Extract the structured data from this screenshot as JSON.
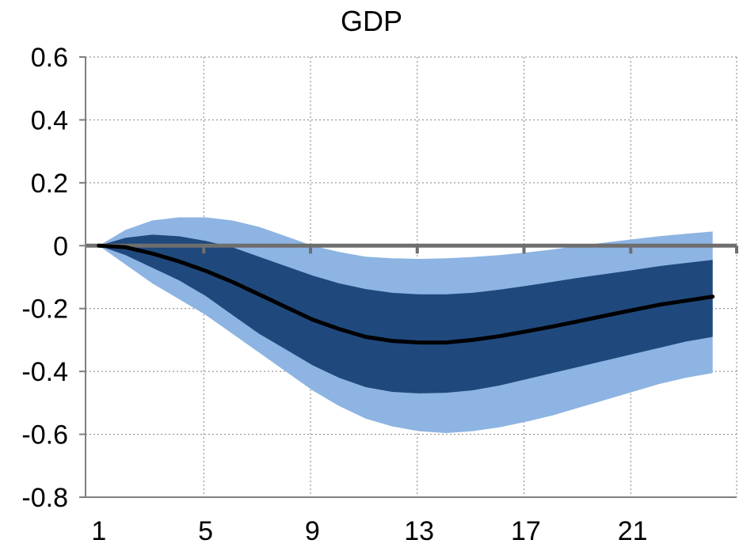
{
  "chart_data": {
    "type": "area",
    "title": "GDP",
    "xlabel": "",
    "ylabel": "",
    "x_ticks": [
      1,
      5,
      9,
      13,
      17,
      21
    ],
    "y_ticks": [
      0.6,
      0.4,
      0.2,
      0,
      -0.2,
      -0.4,
      -0.6,
      -0.8
    ],
    "x_tick_labels": [
      "1",
      "5",
      "9",
      "13",
      "17",
      "21"
    ],
    "y_tick_labels": [
      "0.6",
      "0.4",
      "0.2",
      "0",
      "-0.2",
      "-0.4",
      "-0.6",
      "-0.8"
    ],
    "xlim": [
      0.5,
      24.9
    ],
    "ylim": [
      -0.8,
      0.6
    ],
    "grid": true,
    "grid_style": "dotted",
    "x": [
      1,
      2,
      3,
      4,
      5,
      6,
      7,
      8,
      9,
      10,
      11,
      12,
      13,
      14,
      15,
      16,
      17,
      18,
      19,
      20,
      21,
      22,
      23,
      24
    ],
    "median": [
      0.0,
      -0.005,
      -0.025,
      -0.05,
      -0.08,
      -0.115,
      -0.155,
      -0.195,
      -0.235,
      -0.265,
      -0.29,
      -0.303,
      -0.308,
      -0.308,
      -0.3,
      -0.288,
      -0.273,
      -0.257,
      -0.24,
      -0.222,
      -0.205,
      -0.188,
      -0.175,
      -0.162
    ],
    "inner_lower": [
      0.0,
      -0.03,
      -0.07,
      -0.11,
      -0.16,
      -0.22,
      -0.28,
      -0.33,
      -0.38,
      -0.42,
      -0.45,
      -0.465,
      -0.47,
      -0.468,
      -0.46,
      -0.445,
      -0.425,
      -0.405,
      -0.385,
      -0.365,
      -0.345,
      -0.325,
      -0.305,
      -0.29
    ],
    "inner_upper": [
      0.0,
      0.025,
      0.035,
      0.03,
      0.015,
      -0.005,
      -0.035,
      -0.065,
      -0.095,
      -0.12,
      -0.138,
      -0.15,
      -0.155,
      -0.155,
      -0.15,
      -0.14,
      -0.128,
      -0.115,
      -0.102,
      -0.09,
      -0.078,
      -0.065,
      -0.055,
      -0.045
    ],
    "outer_lower": [
      0.0,
      -0.06,
      -0.12,
      -0.17,
      -0.22,
      -0.28,
      -0.34,
      -0.4,
      -0.46,
      -0.51,
      -0.55,
      -0.575,
      -0.59,
      -0.596,
      -0.59,
      -0.578,
      -0.56,
      -0.54,
      -0.515,
      -0.49,
      -0.465,
      -0.44,
      -0.42,
      -0.405
    ],
    "outer_upper": [
      0.0,
      0.05,
      0.08,
      0.09,
      0.09,
      0.08,
      0.06,
      0.03,
      0.0,
      -0.02,
      -0.035,
      -0.04,
      -0.042,
      -0.04,
      -0.036,
      -0.03,
      -0.022,
      -0.012,
      0.0,
      0.01,
      0.02,
      0.03,
      0.038,
      0.045
    ],
    "colors": {
      "outer_band": "#8db4e2",
      "inner_band": "#1f497d",
      "median_line": "#000000",
      "zero_line": "#6e6e6e",
      "grid": "#808080",
      "axis": "#7f7f7f"
    }
  }
}
